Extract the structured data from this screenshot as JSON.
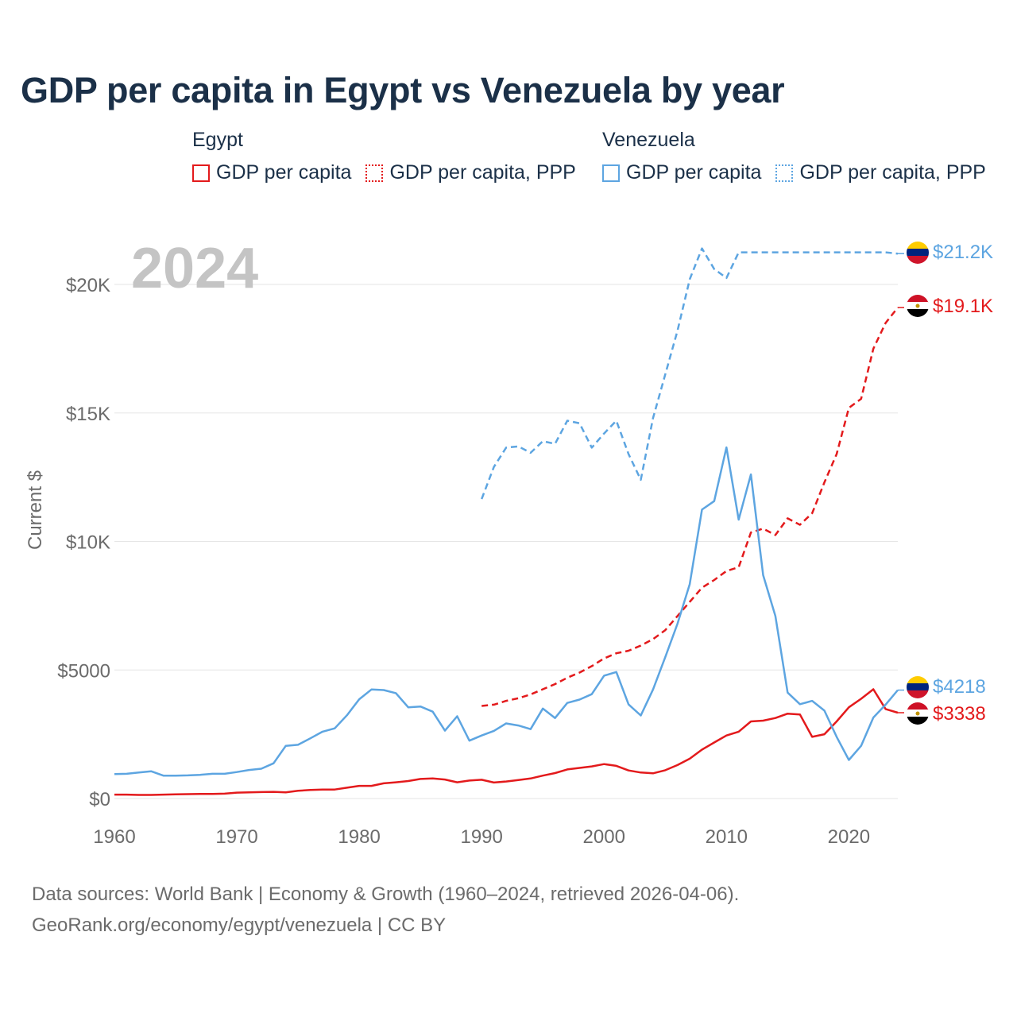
{
  "title": "GDP per capita in Egypt vs Venezuela by year",
  "legend": {
    "groups": [
      {
        "name": "Egypt",
        "items": [
          "GDP per capita",
          "GDP per capita, PPP"
        ]
      },
      {
        "name": "Venezuela",
        "items": [
          "GDP per capita",
          "GDP per capita, PPP"
        ]
      }
    ]
  },
  "year_label": "2024",
  "colors": {
    "egypt": "#e31a1c",
    "venezuela": "#5da5e1",
    "grid": "#e6e6e6",
    "axis_text": "#6b6b6b",
    "title": "#1b3048"
  },
  "footer": {
    "line1": "Data sources: World Bank | Economy & Growth (1960–2024, retrieved 2026-04-06).",
    "line2": "GeoRank.org/economy/egypt/venezuela | CC BY"
  },
  "chart_data": {
    "type": "line",
    "title": "GDP per capita in Egypt vs Venezuela by year",
    "xlabel": "",
    "ylabel": "Current $",
    "xlim": [
      1960,
      2024
    ],
    "ylim": [
      0,
      22000
    ],
    "x_ticks": [
      1960,
      1970,
      1980,
      1990,
      2000,
      2010,
      2020
    ],
    "x_tick_labels": [
      "1960",
      "1970",
      "1980",
      "1990",
      "2000",
      "2010",
      "2020"
    ],
    "y_ticks": [
      0,
      5000,
      10000,
      15000,
      20000
    ],
    "y_tick_labels": [
      "$0",
      "$5000",
      "$10K",
      "$15K",
      "$20K"
    ],
    "grid": true,
    "series": [
      {
        "name": "Egypt GDP per capita",
        "country": "Egypt",
        "style": "solid",
        "color": "#e31a1c",
        "x": [
          1960,
          1961,
          1962,
          1963,
          1964,
          1965,
          1966,
          1967,
          1968,
          1969,
          1970,
          1971,
          1972,
          1973,
          1974,
          1975,
          1976,
          1977,
          1978,
          1979,
          1980,
          1981,
          1982,
          1983,
          1984,
          1985,
          1986,
          1987,
          1988,
          1989,
          1990,
          1991,
          1992,
          1993,
          1994,
          1995,
          1996,
          1997,
          1998,
          1999,
          2000,
          2001,
          2002,
          2003,
          2004,
          2005,
          2006,
          2007,
          2008,
          2009,
          2010,
          2011,
          2012,
          2013,
          2014,
          2015,
          2016,
          2017,
          2018,
          2019,
          2020,
          2021,
          2022,
          2023,
          2024
        ],
        "values": [
          150,
          150,
          140,
          140,
          150,
          160,
          170,
          175,
          180,
          190,
          230,
          240,
          250,
          260,
          240,
          300,
          330,
          350,
          350,
          420,
          490,
          490,
          590,
          630,
          680,
          760,
          780,
          740,
          630,
          700,
          730,
          620,
          660,
          720,
          780,
          890,
          990,
          1130,
          1190,
          1250,
          1340,
          1270,
          1090,
          1010,
          980,
          1100,
          1300,
          1550,
          1900,
          2180,
          2450,
          2600,
          3000,
          3030,
          3130,
          3300,
          3270,
          2400,
          2500,
          3000,
          3550,
          3880,
          4250,
          3480,
          3338
        ],
        "end_label": "$3338"
      },
      {
        "name": "Egypt GDP per capita, PPP",
        "country": "Egypt",
        "style": "dashed",
        "color": "#e31a1c",
        "x": [
          1990,
          1991,
          1992,
          1993,
          1994,
          1995,
          1996,
          1997,
          1998,
          1999,
          2000,
          2001,
          2002,
          2003,
          2004,
          2005,
          2006,
          2007,
          2008,
          2009,
          2010,
          2011,
          2012,
          2013,
          2014,
          2015,
          2016,
          2017,
          2018,
          2019,
          2020,
          2021,
          2022,
          2023,
          2024
        ],
        "values": [
          3600,
          3650,
          3800,
          3900,
          4050,
          4250,
          4450,
          4700,
          4900,
          5150,
          5450,
          5650,
          5750,
          5950,
          6200,
          6550,
          7100,
          7650,
          8200,
          8500,
          8850,
          9000,
          10350,
          10500,
          10250,
          10900,
          10650,
          11100,
          12300,
          13400,
          15200,
          15550,
          17500,
          18500,
          19100
        ],
        "end_label": "$19.1K"
      },
      {
        "name": "Venezuela GDP per capita",
        "country": "Venezuela",
        "style": "solid",
        "color": "#5da5e1",
        "x": [
          1960,
          1961,
          1962,
          1963,
          1964,
          1965,
          1966,
          1967,
          1968,
          1969,
          1970,
          1971,
          1972,
          1973,
          1974,
          1975,
          1976,
          1977,
          1978,
          1979,
          1980,
          1981,
          1982,
          1983,
          1984,
          1985,
          1986,
          1987,
          1988,
          1989,
          1990,
          1991,
          1992,
          1993,
          1994,
          1995,
          1996,
          1997,
          1998,
          1999,
          2000,
          2001,
          2002,
          2003,
          2004,
          2005,
          2006,
          2007,
          2008,
          2009,
          2010,
          2011,
          2012,
          2013,
          2014,
          2015,
          2016,
          2017,
          2018,
          2019,
          2020,
          2021,
          2022,
          2023,
          2024
        ],
        "values": [
          950,
          960,
          1010,
          1060,
          890,
          890,
          900,
          920,
          960,
          960,
          1030,
          1110,
          1160,
          1370,
          2050,
          2090,
          2340,
          2600,
          2730,
          3240,
          3860,
          4240,
          4220,
          4100,
          3550,
          3580,
          3380,
          2640,
          3200,
          2250,
          2450,
          2630,
          2920,
          2840,
          2700,
          3500,
          3130,
          3720,
          3850,
          4060,
          4780,
          4920,
          3660,
          3230,
          4240,
          5500,
          6800,
          8340,
          11240,
          11570,
          13660,
          10850,
          12610,
          8690,
          7100,
          4120,
          3670,
          3800,
          3420,
          2400,
          1500,
          2050,
          3150,
          3650,
          4218
        ],
        "end_label": "$4218"
      },
      {
        "name": "Venezuela GDP per capita, PPP",
        "country": "Venezuela",
        "style": "dashed",
        "color": "#5da5e1",
        "x": [
          1990,
          1991,
          1992,
          1993,
          1994,
          1995,
          1996,
          1997,
          1998,
          1999,
          2000,
          2001,
          2002,
          2003,
          2004,
          2005,
          2006,
          2007,
          2008,
          2009,
          2010,
          2011,
          2012,
          2013,
          2014,
          2015,
          2016,
          2017,
          2018,
          2019,
          2020,
          2021,
          2022,
          2023,
          2024
        ],
        "values": [
          11650,
          12900,
          13650,
          13700,
          13450,
          13900,
          13800,
          14700,
          14600,
          13650,
          14200,
          14700,
          13400,
          12400,
          14800,
          16500,
          18200,
          20200,
          21400,
          20600,
          20250,
          21250,
          21250,
          21250,
          21250,
          21250,
          21250,
          21250,
          21250,
          21250,
          21250,
          21250,
          21250,
          21250,
          21200
        ],
        "end_label": "$21.2K"
      }
    ]
  }
}
